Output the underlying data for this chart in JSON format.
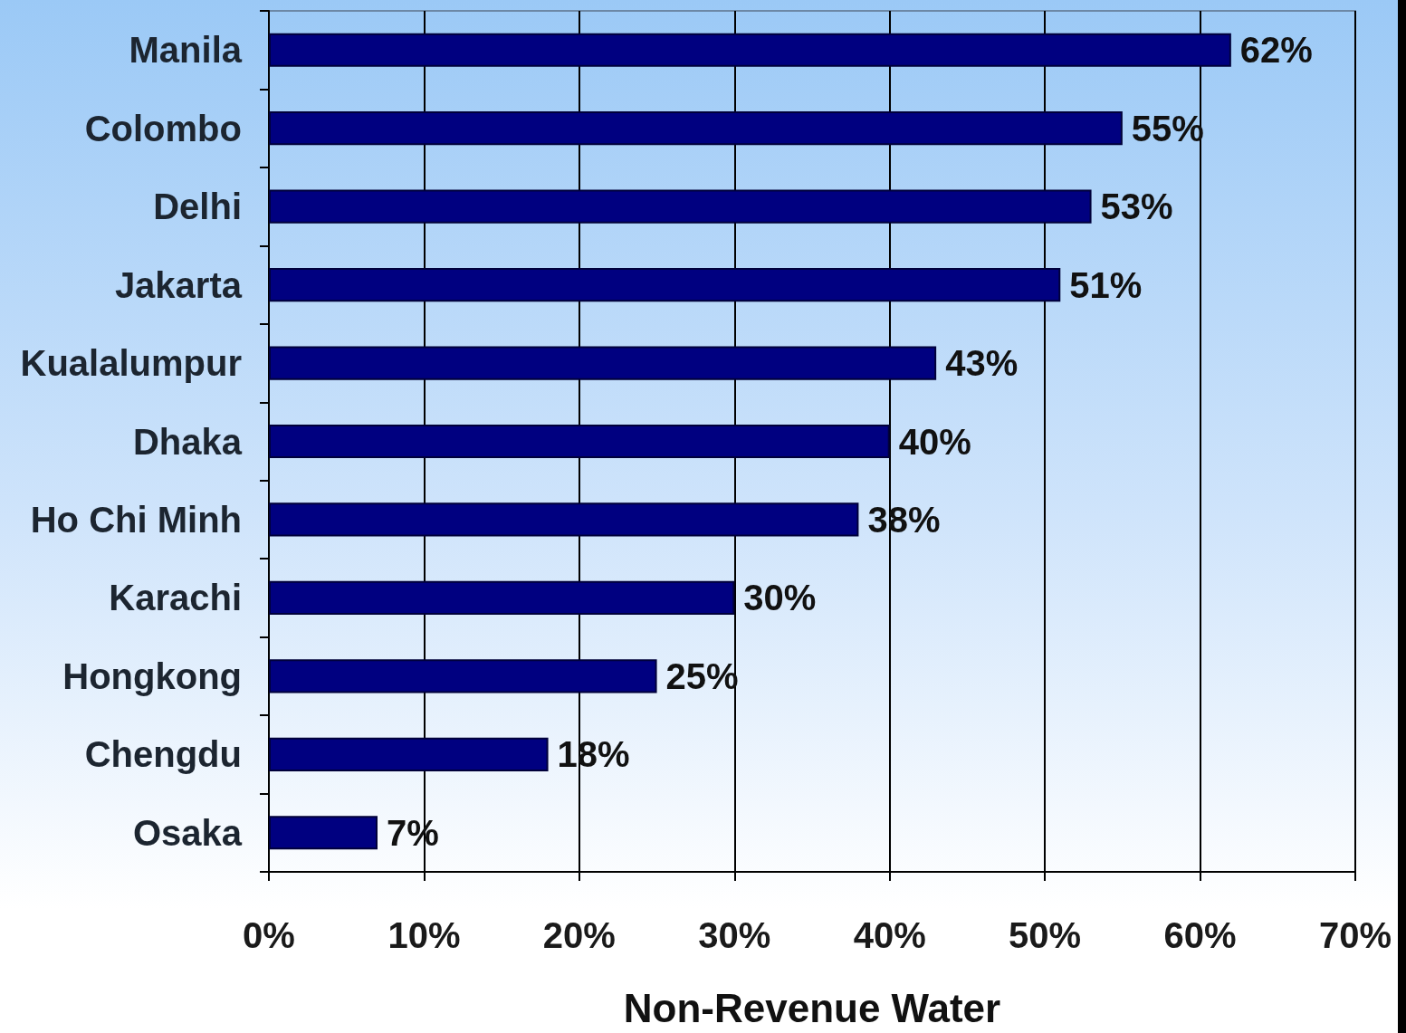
{
  "chart_data": {
    "type": "bar",
    "orientation": "horizontal",
    "categories": [
      "Manila",
      "Colombo",
      "Delhi",
      "Jakarta",
      "Kualalumpur",
      "Dhaka",
      "Ho Chi Minh",
      "Karachi",
      "Hongkong",
      "Chengdu",
      "Osaka"
    ],
    "values": [
      62,
      55,
      53,
      51,
      43,
      40,
      38,
      30,
      25,
      18,
      7
    ],
    "value_labels": [
      "62%",
      "55%",
      "53%",
      "51%",
      "43%",
      "40%",
      "38%",
      "30%",
      "25%",
      "18%",
      "7%"
    ],
    "color": "#000080",
    "xlim": [
      0,
      70
    ],
    "xticks": [
      {
        "value": 0,
        "label": "0%"
      },
      {
        "value": 10,
        "label": "10%"
      },
      {
        "value": 20,
        "label": "20%"
      },
      {
        "value": 30,
        "label": "30%"
      },
      {
        "value": 40,
        "label": "40%"
      },
      {
        "value": 50,
        "label": "50%"
      },
      {
        "value": 60,
        "label": "60%"
      },
      {
        "value": 70,
        "label": "70%"
      }
    ],
    "xlabel": "Non-Revenue Water",
    "grid": "x"
  }
}
